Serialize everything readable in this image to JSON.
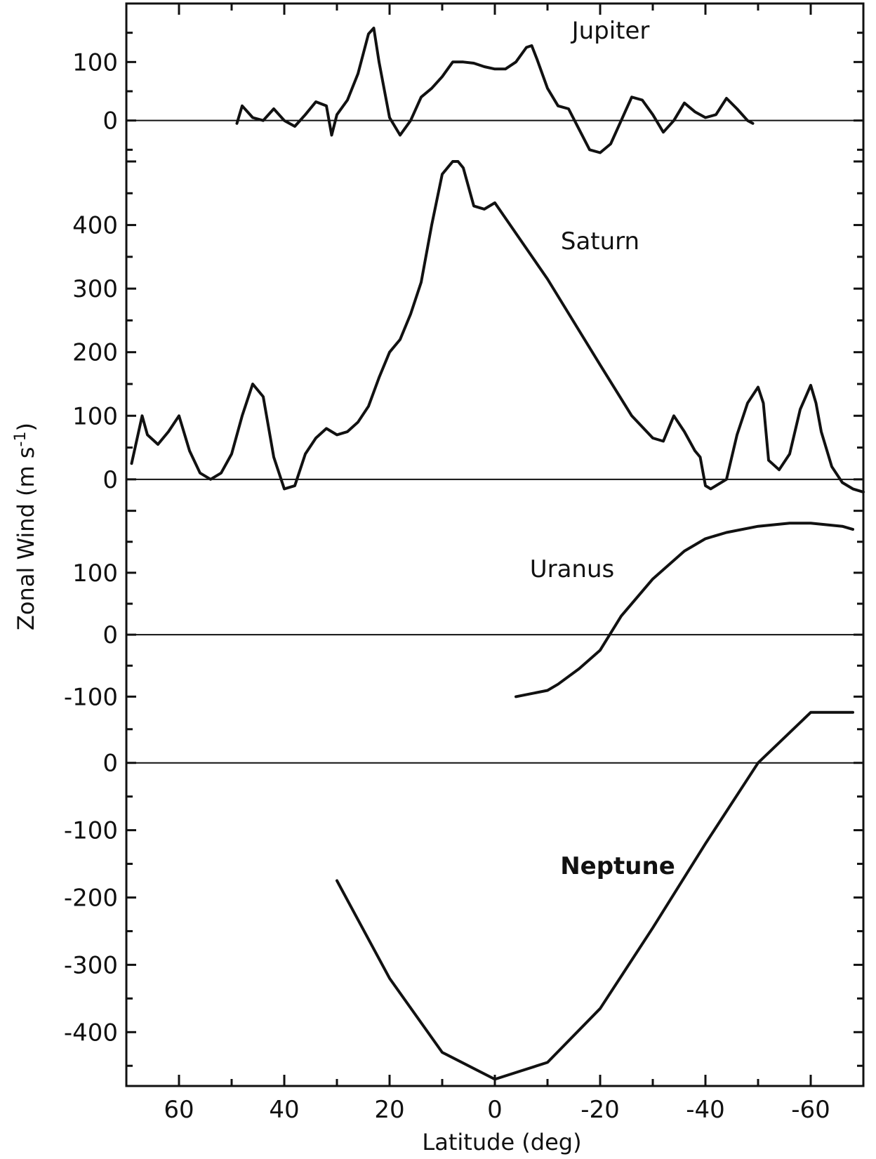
{
  "chart_data": {
    "type": "line",
    "xlabel": "Latitude (deg)",
    "ylabel": "Zonal Wind (m s",
    "ylabel_exponent": "-1",
    "ylabel_close": ")",
    "xlim": [
      70,
      -70
    ],
    "x_ticks": [
      {
        "value": 60,
        "label": "60"
      },
      {
        "value": 40,
        "label": "40"
      },
      {
        "value": 20,
        "label": "20"
      },
      {
        "value": 0,
        "label": "0"
      },
      {
        "value": -20,
        "label": "-20"
      },
      {
        "value": -40,
        "label": "-40"
      },
      {
        "value": -60,
        "label": "-60"
      }
    ],
    "panels": [
      {
        "name": "Jupiter",
        "ylim": [
          -70,
          200
        ],
        "y_ticks": [
          {
            "value": 100,
            "label": "100"
          },
          {
            "value": 0,
            "label": "0"
          }
        ],
        "x": [
          49,
          48,
          46,
          44,
          42,
          40,
          38,
          36,
          34,
          32,
          31,
          30,
          28,
          26,
          24,
          23,
          22,
          20,
          18,
          16,
          14,
          12,
          10,
          8,
          6,
          4,
          2,
          0,
          -2,
          -4,
          -6,
          -7,
          -8,
          -10,
          -12,
          -14,
          -16,
          -18,
          -20,
          -22,
          -24,
          -26,
          -28,
          -30,
          -32,
          -34,
          -36,
          -38,
          -40,
          -42,
          -44,
          -46,
          -48,
          -49
        ],
        "y": [
          -5,
          25,
          5,
          0,
          20,
          0,
          -10,
          10,
          32,
          25,
          -25,
          10,
          35,
          80,
          148,
          158,
          100,
          5,
          -25,
          0,
          40,
          55,
          75,
          100,
          100,
          98,
          92,
          88,
          88,
          100,
          125,
          128,
          105,
          55,
          25,
          20,
          -15,
          -50,
          -55,
          -40,
          0,
          40,
          35,
          10,
          -20,
          0,
          30,
          15,
          5,
          10,
          38,
          20,
          0,
          -5
        ]
      },
      {
        "name": "Saturn",
        "ylim": [
          -30,
          500
        ],
        "y_ticks": [
          {
            "value": 400,
            "label": "400"
          },
          {
            "value": 300,
            "label": "300"
          },
          {
            "value": 200,
            "label": "200"
          },
          {
            "value": 100,
            "label": "100"
          },
          {
            "value": 0,
            "label": "0"
          }
        ],
        "x": [
          69,
          67,
          66,
          64,
          62,
          60,
          58,
          56,
          54,
          52,
          50,
          48,
          46,
          44,
          42,
          40,
          38,
          36,
          34,
          32,
          31,
          30,
          28,
          26,
          24,
          22,
          20,
          18,
          16,
          14,
          12,
          10,
          8,
          7,
          6,
          5,
          4,
          2,
          0,
          -10,
          -20,
          -26,
          -30,
          -32,
          -34,
          -36,
          -38,
          -39,
          -40,
          -41,
          -42,
          -44,
          -46,
          -48,
          -50,
          -51,
          -52,
          -54,
          -56,
          -58,
          -60,
          -61,
          -62,
          -64,
          -66,
          -68,
          -70
        ],
        "y": [
          25,
          100,
          70,
          55,
          75,
          100,
          45,
          10,
          0,
          10,
          40,
          100,
          150,
          130,
          35,
          -15,
          -10,
          40,
          65,
          80,
          75,
          70,
          75,
          90,
          115,
          160,
          200,
          220,
          260,
          310,
          400,
          480,
          500,
          500,
          490,
          460,
          430,
          425,
          435,
          315,
          180,
          100,
          65,
          60,
          100,
          75,
          45,
          35,
          -10,
          -15,
          -10,
          0,
          70,
          120,
          145,
          120,
          30,
          15,
          40,
          110,
          148,
          120,
          75,
          20,
          -5,
          -15,
          -20
        ]
      },
      {
        "name": "Uranus",
        "ylim": [
          -120,
          220
        ],
        "y_ticks": [
          {
            "value": 100,
            "label": "100"
          },
          {
            "value": 0,
            "label": "0"
          },
          {
            "value": -100,
            "label": "-100"
          }
        ],
        "x": [
          -4,
          -10,
          -12,
          -16,
          -20,
          -24,
          -30,
          -36,
          -40,
          -44,
          -50,
          -56,
          -60,
          -66,
          -68
        ],
        "y": [
          -100,
          -90,
          -80,
          -55,
          -25,
          30,
          90,
          135,
          155,
          165,
          175,
          180,
          180,
          175,
          170
        ]
      },
      {
        "name": "Neptune",
        "ylim": [
          -480,
          80
        ],
        "y_ticks": [
          {
            "value": 0,
            "label": "0"
          },
          {
            "value": -100,
            "label": "-100"
          },
          {
            "value": -200,
            "label": "-200"
          },
          {
            "value": -300,
            "label": "-300"
          },
          {
            "value": -400,
            "label": "-400"
          }
        ],
        "x": [
          30,
          20,
          10,
          0,
          -10,
          -20,
          -30,
          -40,
          -50,
          -60,
          -68
        ],
        "y": [
          -175,
          -320,
          -430,
          -470,
          -445,
          -365,
          -245,
          -120,
          0,
          75,
          75
        ]
      }
    ],
    "grid": false,
    "legend": "none"
  }
}
